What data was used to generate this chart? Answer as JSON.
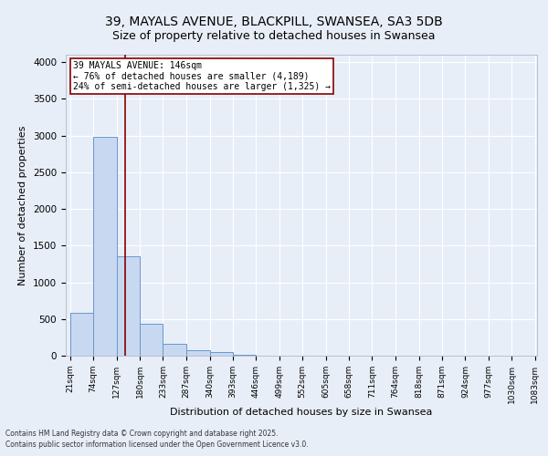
{
  "title1": "39, MAYALS AVENUE, BLACKPILL, SWANSEA, SA3 5DB",
  "title2": "Size of property relative to detached houses in Swansea",
  "xlabel": "Distribution of detached houses by size in Swansea",
  "ylabel": "Number of detached properties",
  "bin_edges": [
    21,
    74,
    127,
    180,
    233,
    287,
    340,
    393,
    446,
    499,
    552,
    605,
    658,
    711,
    764,
    818,
    871,
    924,
    977,
    1030,
    1083
  ],
  "bar_heights": [
    580,
    2980,
    1350,
    430,
    160,
    80,
    50,
    10,
    5,
    3,
    2,
    1,
    1,
    0,
    0,
    0,
    0,
    0,
    0,
    0
  ],
  "bar_color": "#c8d8f0",
  "bar_edgecolor": "#6699cc",
  "background_color": "#e8eef8",
  "grid_color": "#ffffff",
  "vline_x": 146,
  "vline_color": "#880000",
  "annotation_text": "39 MAYALS AVENUE: 146sqm\n← 76% of detached houses are smaller (4,189)\n24% of semi-detached houses are larger (1,325) →",
  "annotation_box_color": "#ffffff",
  "annotation_border_color": "#880000",
  "ylim": [
    0,
    4100
  ],
  "yticks": [
    0,
    500,
    1000,
    1500,
    2000,
    2500,
    3000,
    3500,
    4000
  ],
  "footnote1": "Contains HM Land Registry data © Crown copyright and database right 2025.",
  "footnote2": "Contains public sector information licensed under the Open Government Licence v3.0.",
  "title_fontsize": 10,
  "subtitle_fontsize": 9,
  "tick_labelsize": 6.5,
  "ylabel_fontsize": 8,
  "xlabel_fontsize": 8,
  "annotation_fontsize": 7,
  "footnote_fontsize": 5.5
}
